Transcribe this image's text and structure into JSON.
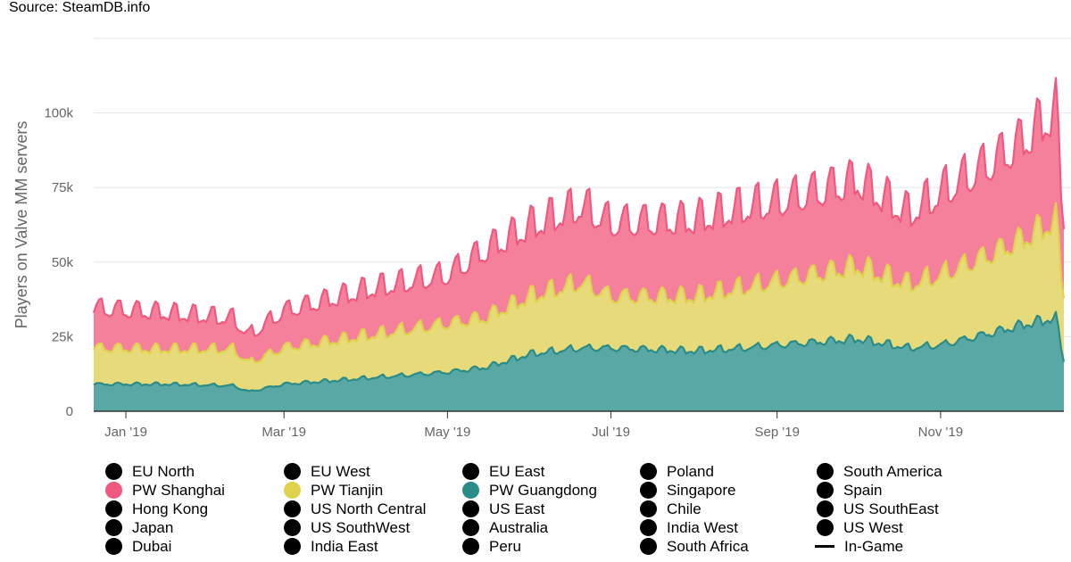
{
  "source": "Source: SteamDB.info",
  "colors": {
    "guangdong_fill": "#5aa8a5",
    "guangdong_line": "#2a8c88",
    "tianjin_fill": "#e6da7a",
    "tianjin_line": "#e0d24a",
    "shanghai_fill": "#f4809c",
    "shanghai_line": "#f0587f",
    "grid": "#e6e6e6",
    "axis": "#333333",
    "legend_default": "#000000"
  },
  "chart_data": {
    "type": "area",
    "stacked": true,
    "ylabel": "Players on Valve MM servers",
    "yticks": [
      "0",
      "25k",
      "50k",
      "75k",
      "100k"
    ],
    "ytick_values": [
      0,
      25000,
      50000,
      75000,
      100000
    ],
    "ylim": [
      0,
      125000
    ],
    "xticks": [
      "Jan '19",
      "Mar '19",
      "May '19",
      "Jul '19",
      "Sep '19",
      "Nov '19"
    ],
    "xtick_dates": [
      "2019-01-01",
      "2019-03-01",
      "2019-05-01",
      "2019-07-01",
      "2019-09-01",
      "2019-11-01"
    ],
    "x_range": [
      "2018-12-20",
      "2019-12-17"
    ],
    "grid": true,
    "legend_position": "bottom",
    "series": [
      {
        "name": "PW Guangdong",
        "color": "#2a8c88",
        "points": [
          [
            "2018-12-20",
            9000
          ],
          [
            "2019-01-15",
            9000
          ],
          [
            "2019-02-10",
            8500
          ],
          [
            "2019-02-16",
            6500
          ],
          [
            "2019-03-01",
            9000
          ],
          [
            "2019-04-01",
            11000
          ],
          [
            "2019-05-01",
            13000
          ],
          [
            "2019-05-15",
            14500
          ],
          [
            "2019-06-01",
            19000
          ],
          [
            "2019-06-20",
            21000
          ],
          [
            "2019-07-01",
            21000
          ],
          [
            "2019-08-01",
            20000
          ],
          [
            "2019-08-20",
            21000
          ],
          [
            "2019-09-01",
            22000
          ],
          [
            "2019-10-01",
            24000
          ],
          [
            "2019-10-20",
            21000
          ],
          [
            "2019-11-01",
            22000
          ],
          [
            "2019-11-20",
            26000
          ],
          [
            "2019-12-01",
            28500
          ],
          [
            "2019-12-14",
            31000
          ],
          [
            "2019-12-17",
            17000
          ]
        ]
      },
      {
        "name": "PW Tianjin",
        "color": "#e0d24a",
        "points": [
          [
            "2018-12-20",
            12000
          ],
          [
            "2019-01-15",
            11500
          ],
          [
            "2019-02-10",
            12000
          ],
          [
            "2019-02-16",
            9500
          ],
          [
            "2019-03-01",
            12000
          ],
          [
            "2019-04-01",
            14000
          ],
          [
            "2019-05-01",
            16000
          ],
          [
            "2019-05-15",
            16500
          ],
          [
            "2019-06-01",
            19000
          ],
          [
            "2019-06-20",
            21500
          ],
          [
            "2019-07-01",
            17000
          ],
          [
            "2019-08-01",
            18000
          ],
          [
            "2019-08-20",
            20000
          ],
          [
            "2019-09-01",
            21000
          ],
          [
            "2019-10-01",
            24000
          ],
          [
            "2019-10-20",
            21000
          ],
          [
            "2019-11-01",
            23000
          ],
          [
            "2019-11-20",
            26000
          ],
          [
            "2019-12-01",
            28000
          ],
          [
            "2019-12-14",
            32000
          ],
          [
            "2019-12-17",
            22000
          ]
        ]
      },
      {
        "name": "PW Shanghai",
        "color": "#f0587f",
        "points": [
          [
            "2018-12-20",
            13000
          ],
          [
            "2019-01-15",
            12000
          ],
          [
            "2019-02-10",
            10000
          ],
          [
            "2019-02-16",
            9000
          ],
          [
            "2019-03-01",
            12000
          ],
          [
            "2019-04-01",
            15000
          ],
          [
            "2019-05-01",
            16000
          ],
          [
            "2019-05-15",
            22000
          ],
          [
            "2019-06-01",
            23000
          ],
          [
            "2019-06-20",
            25000
          ],
          [
            "2019-07-01",
            24000
          ],
          [
            "2019-08-01",
            25000
          ],
          [
            "2019-08-20",
            26000
          ],
          [
            "2019-09-01",
            26000
          ],
          [
            "2019-10-01",
            28000
          ],
          [
            "2019-10-20",
            23000
          ],
          [
            "2019-11-01",
            27000
          ],
          [
            "2019-11-20",
            30000
          ],
          [
            "2019-12-01",
            32000
          ],
          [
            "2019-12-14",
            36000
          ],
          [
            "2019-12-17",
            24000
          ]
        ]
      }
    ]
  },
  "legend": [
    {
      "label": "EU North",
      "color": "#000000",
      "kind": "dot"
    },
    {
      "label": "EU West",
      "color": "#000000",
      "kind": "dot"
    },
    {
      "label": "EU East",
      "color": "#000000",
      "kind": "dot"
    },
    {
      "label": "Poland",
      "color": "#000000",
      "kind": "dot"
    },
    {
      "label": "South America",
      "color": "#000000",
      "kind": "dot"
    },
    {
      "label": "PW Shanghai",
      "color": "#f0587f",
      "kind": "dot"
    },
    {
      "label": "PW Tianjin",
      "color": "#e0d24a",
      "kind": "dot"
    },
    {
      "label": "PW Guangdong",
      "color": "#2a8c88",
      "kind": "dot"
    },
    {
      "label": "Singapore",
      "color": "#000000",
      "kind": "dot"
    },
    {
      "label": "Spain",
      "color": "#000000",
      "kind": "dot"
    },
    {
      "label": "Hong Kong",
      "color": "#000000",
      "kind": "dot"
    },
    {
      "label": "US North Central",
      "color": "#000000",
      "kind": "dot"
    },
    {
      "label": "US East",
      "color": "#000000",
      "kind": "dot"
    },
    {
      "label": "Chile",
      "color": "#000000",
      "kind": "dot"
    },
    {
      "label": "US SouthEast",
      "color": "#000000",
      "kind": "dot"
    },
    {
      "label": "Japan",
      "color": "#000000",
      "kind": "dot"
    },
    {
      "label": "US SouthWest",
      "color": "#000000",
      "kind": "dot"
    },
    {
      "label": "Australia",
      "color": "#000000",
      "kind": "dot"
    },
    {
      "label": "India West",
      "color": "#000000",
      "kind": "dot"
    },
    {
      "label": "US West",
      "color": "#000000",
      "kind": "dot"
    },
    {
      "label": "Dubai",
      "color": "#000000",
      "kind": "dot"
    },
    {
      "label": "India East",
      "color": "#000000",
      "kind": "dot"
    },
    {
      "label": "Peru",
      "color": "#000000",
      "kind": "dot"
    },
    {
      "label": "South Africa",
      "color": "#000000",
      "kind": "dot"
    },
    {
      "label": "In-Game",
      "color": "#000000",
      "kind": "line"
    }
  ]
}
